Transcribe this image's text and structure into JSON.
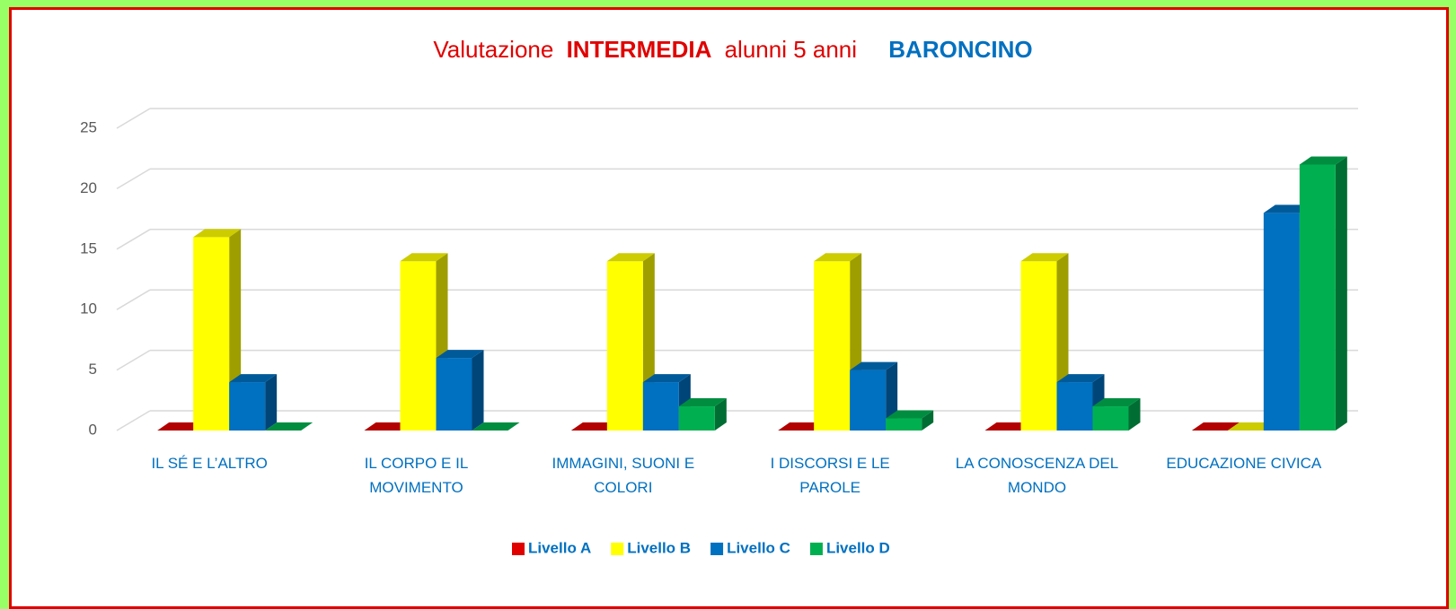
{
  "chart_data": {
    "type": "bar3d",
    "title": [
      "Valutazione",
      "INTERMEDIA",
      "alunni 5 anni",
      "BARONCINO"
    ],
    "categories": [
      "IL SÉ E L’ALTRO",
      "IL CORPO E IL MOVIMENTO",
      "IMMAGINI, SUONI E COLORI",
      "I DISCORSI E LE PAROLE",
      "LA CONOSCENZA DEL MONDO",
      "EDUCAZIONE CIVICA"
    ],
    "series": [
      {
        "name": "Livello A",
        "color": "#e00000",
        "values": [
          0,
          0,
          0,
          0,
          0,
          0
        ]
      },
      {
        "name": "Livello B",
        "color": "#ffff00",
        "values": [
          16,
          14,
          14,
          14,
          14,
          0
        ]
      },
      {
        "name": "Livello C",
        "color": "#0070c0",
        "values": [
          4,
          6,
          4,
          5,
          4,
          18
        ]
      },
      {
        "name": "Livello D",
        "color": "#00b050",
        "values": [
          0,
          0,
          2,
          1,
          2,
          22
        ]
      }
    ],
    "ylim": [
      0,
      25
    ],
    "yticks": [
      0,
      5,
      10,
      15,
      20,
      25
    ],
    "grid": true,
    "legend": "bottom"
  }
}
